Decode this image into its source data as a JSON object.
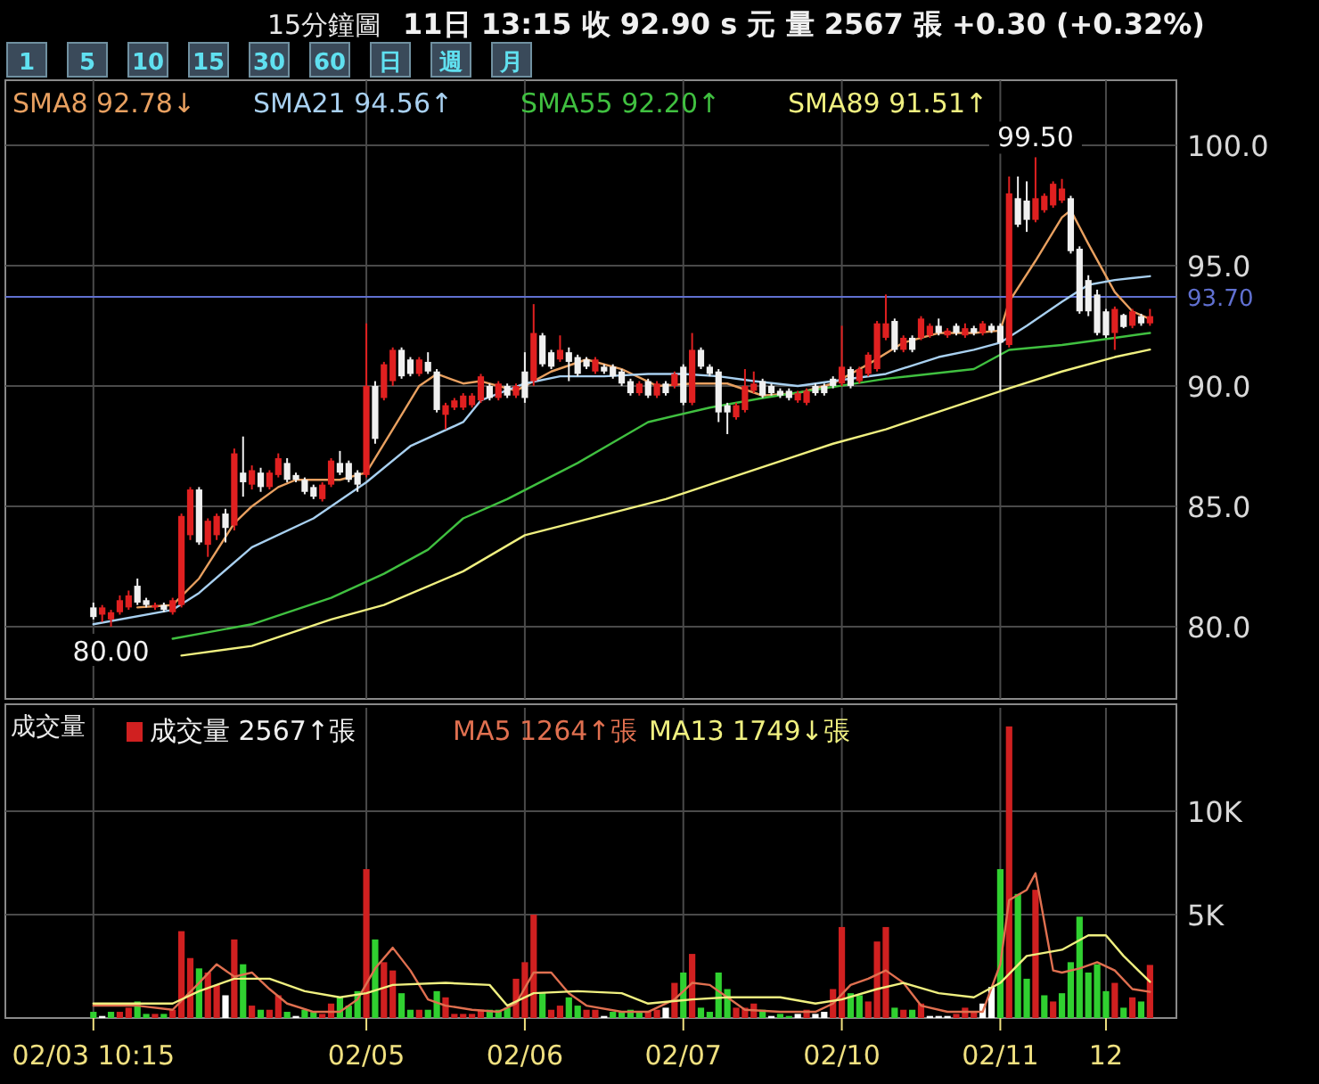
{
  "chart_data": [
    {
      "type": "candlestick",
      "title": "15分鐘圖",
      "subtitle": "11日 13:15 收 92.90 s 元 量 2567 張 +0.30 (+0.32%)",
      "annotations": [
        "1",
        "5",
        "10",
        "15",
        "30",
        "60",
        "日",
        "週",
        "月",
        {
          "text": "99.50",
          "y": 99.5
        },
        {
          "text": "80.00",
          "y": 80.0
        }
      ],
      "categories": [
        null,
        null,
        null,
        null,
        null,
        null,
        null,
        null,
        null,
        null,
        null,
        null,
        null,
        null,
        null,
        null,
        null,
        null,
        null,
        null,
        null,
        null,
        null,
        null,
        null,
        null,
        null,
        null,
        null,
        null,
        null,
        null,
        null,
        null,
        null,
        null,
        null,
        null,
        null,
        null,
        null,
        null,
        null,
        null,
        null,
        null,
        null,
        null,
        null,
        null,
        null,
        null,
        null,
        null,
        null,
        null,
        null,
        null,
        null,
        null,
        null,
        null,
        null,
        null,
        null,
        null,
        null,
        null,
        null,
        null,
        null,
        null,
        null,
        null,
        null,
        null,
        null,
        null,
        null,
        null,
        null,
        null,
        null,
        null,
        null,
        null,
        null,
        null,
        null,
        null,
        null,
        null,
        null,
        null,
        null,
        null,
        null,
        null,
        null,
        null,
        null,
        null,
        null,
        null,
        null,
        null,
        null,
        null,
        null,
        null,
        null,
        null,
        null,
        null,
        null,
        null,
        null,
        null,
        null,
        null,
        null
      ],
      "ylim": [
        77,
        102.7
      ],
      "yticks": [
        {
          "value": 80,
          "label": "80.0"
        },
        {
          "value": 85,
          "label": "85.0"
        },
        {
          "value": 90,
          "label": "90.0"
        },
        {
          "value": 95,
          "label": "95.0"
        },
        {
          "value": 100,
          "label": "100.0"
        }
      ],
      "tick_labels": "y",
      "grid": true,
      "legend": "top left",
      "ref_lines": [
        {
          "axis": "y",
          "value": 93.7,
          "label": "93.70",
          "color": "#6070d0"
        }
      ],
      "ohlc": [
        [
          80.8,
          81.0,
          80.3,
          80.4
        ],
        [
          80.5,
          80.9,
          80.2,
          80.8
        ],
        [
          80.3,
          80.7,
          80.0,
          80.6
        ],
        [
          80.6,
          81.3,
          80.5,
          81.1
        ],
        [
          80.8,
          81.5,
          80.7,
          81.3
        ],
        [
          81.7,
          82.0,
          80.9,
          81.0
        ],
        [
          81.1,
          81.2,
          80.8,
          80.9
        ],
        [
          80.8,
          81.0,
          80.7,
          80.9
        ],
        [
          80.9,
          81.0,
          80.6,
          80.7
        ],
        [
          80.6,
          81.2,
          80.5,
          81.1
        ],
        [
          80.9,
          84.7,
          80.8,
          84.6
        ],
        [
          83.8,
          85.8,
          83.6,
          85.7
        ],
        [
          85.7,
          85.8,
          83.4,
          83.5
        ],
        [
          83.4,
          84.5,
          82.9,
          84.4
        ],
        [
          83.8,
          84.7,
          83.6,
          84.6
        ],
        [
          84.7,
          84.9,
          83.5,
          84.1
        ],
        [
          84.2,
          87.4,
          84.0,
          87.2
        ],
        [
          86.4,
          87.9,
          85.4,
          86.0
        ],
        [
          85.9,
          86.7,
          85.7,
          86.5
        ],
        [
          86.4,
          86.6,
          85.6,
          85.8
        ],
        [
          85.8,
          86.5,
          85.7,
          86.4
        ],
        [
          86.3,
          87.2,
          86.2,
          87.0
        ],
        [
          86.8,
          87.0,
          86.0,
          86.1
        ],
        [
          86.3,
          86.4,
          86.0,
          86.1
        ],
        [
          86.1,
          86.2,
          85.5,
          85.6
        ],
        [
          85.8,
          85.9,
          85.3,
          85.4
        ],
        [
          85.3,
          86.0,
          85.2,
          85.9
        ],
        [
          85.9,
          87.0,
          85.8,
          86.9
        ],
        [
          86.8,
          87.3,
          86.3,
          86.4
        ],
        [
          86.8,
          86.9,
          86.0,
          86.1
        ],
        [
          86.4,
          86.5,
          85.6,
          85.9
        ],
        [
          86.3,
          92.6,
          86.2,
          90.0
        ],
        [
          90.0,
          90.2,
          87.6,
          87.8
        ],
        [
          89.5,
          91.0,
          89.4,
          90.9
        ],
        [
          90.2,
          91.6,
          90.0,
          91.5
        ],
        [
          91.5,
          91.6,
          90.3,
          90.4
        ],
        [
          91.1,
          91.2,
          90.4,
          90.5
        ],
        [
          90.5,
          91.2,
          90.4,
          91.1
        ],
        [
          91.0,
          91.4,
          90.5,
          90.6
        ],
        [
          90.6,
          90.7,
          88.9,
          89.0
        ],
        [
          88.8,
          89.3,
          88.2,
          89.2
        ],
        [
          89.1,
          89.5,
          89.0,
          89.4
        ],
        [
          89.1,
          89.7,
          89.0,
          89.6
        ],
        [
          89.2,
          89.7,
          89.1,
          89.6
        ],
        [
          89.4,
          90.5,
          89.3,
          90.4
        ],
        [
          90.0,
          90.1,
          89.4,
          89.5
        ],
        [
          89.5,
          90.2,
          89.4,
          90.1
        ],
        [
          90.0,
          90.1,
          89.5,
          89.6
        ],
        [
          89.6,
          90.1,
          89.5,
          90.0
        ],
        [
          90.6,
          91.4,
          89.3,
          89.5
        ],
        [
          90.2,
          93.4,
          90.0,
          92.2
        ],
        [
          92.1,
          92.2,
          90.8,
          90.9
        ],
        [
          91.4,
          91.5,
          90.7,
          90.8
        ],
        [
          91.1,
          92.1,
          91.0,
          91.5
        ],
        [
          91.4,
          91.6,
          90.2,
          91.0
        ],
        [
          91.2,
          91.3,
          90.4,
          90.5
        ],
        [
          91.1,
          91.2,
          90.7,
          90.8
        ],
        [
          90.6,
          91.2,
          90.5,
          91.1
        ],
        [
          90.8,
          90.9,
          90.5,
          90.6
        ],
        [
          90.8,
          90.9,
          90.3,
          90.4
        ],
        [
          90.6,
          90.7,
          90.0,
          90.1
        ],
        [
          90.2,
          90.3,
          89.6,
          89.7
        ],
        [
          89.7,
          90.2,
          89.6,
          90.1
        ],
        [
          90.2,
          90.3,
          89.5,
          89.6
        ],
        [
          89.6,
          90.2,
          89.5,
          90.1
        ],
        [
          90.1,
          90.2,
          89.6,
          89.7
        ],
        [
          90.0,
          90.6,
          89.9,
          90.5
        ],
        [
          90.8,
          90.9,
          89.2,
          89.3
        ],
        [
          89.3,
          92.2,
          89.2,
          91.5
        ],
        [
          91.5,
          91.6,
          90.7,
          90.8
        ],
        [
          90.8,
          90.9,
          90.4,
          90.5
        ],
        [
          90.6,
          90.7,
          88.5,
          88.9
        ],
        [
          89.2,
          89.3,
          88.0,
          88.9
        ],
        [
          88.7,
          89.3,
          88.6,
          89.2
        ],
        [
          89.0,
          90.7,
          88.9,
          90.0
        ],
        [
          89.8,
          90.6,
          89.7,
          90.1
        ],
        [
          90.2,
          90.3,
          89.5,
          89.6
        ],
        [
          90.0,
          90.1,
          89.6,
          89.7
        ],
        [
          89.8,
          89.9,
          89.5,
          89.6
        ],
        [
          89.8,
          89.9,
          89.4,
          89.5
        ],
        [
          89.4,
          89.8,
          89.3,
          89.7
        ],
        [
          89.3,
          89.9,
          89.2,
          89.8
        ],
        [
          90.0,
          90.1,
          89.6,
          89.7
        ],
        [
          90.0,
          90.1,
          89.6,
          89.7
        ],
        [
          90.3,
          90.4,
          89.9,
          90.0
        ],
        [
          90.1,
          92.5,
          90.0,
          90.8
        ],
        [
          90.7,
          90.8,
          89.9,
          90.0
        ],
        [
          90.2,
          90.8,
          90.1,
          90.7
        ],
        [
          90.5,
          91.4,
          90.4,
          91.3
        ],
        [
          90.7,
          92.7,
          90.6,
          92.6
        ],
        [
          92.0,
          93.8,
          91.9,
          92.6
        ],
        [
          92.7,
          92.8,
          91.4,
          91.5
        ],
        [
          91.5,
          92.1,
          91.4,
          92.0
        ],
        [
          92.0,
          92.1,
          91.4,
          91.5
        ],
        [
          92.0,
          92.9,
          91.9,
          92.8
        ],
        [
          92.1,
          92.6,
          92.0,
          92.5
        ],
        [
          92.5,
          92.8,
          92.1,
          92.2
        ],
        [
          92.1,
          92.4,
          92.0,
          92.3
        ],
        [
          92.5,
          92.6,
          92.1,
          92.2
        ],
        [
          92.1,
          92.6,
          92.0,
          92.4
        ],
        [
          92.4,
          92.5,
          92.1,
          92.2
        ],
        [
          92.2,
          92.7,
          92.1,
          92.6
        ],
        [
          92.5,
          92.6,
          92.2,
          92.3
        ],
        [
          92.5,
          92.6,
          89.8,
          91.8
        ],
        [
          91.7,
          98.7,
          91.6,
          98.0
        ],
        [
          97.8,
          98.7,
          96.6,
          96.7
        ],
        [
          97.7,
          98.5,
          96.4,
          96.9
        ],
        [
          96.9,
          99.5,
          96.8,
          97.8
        ],
        [
          97.3,
          98.0,
          97.2,
          97.9
        ],
        [
          97.5,
          98.5,
          97.4,
          98.4
        ],
        [
          97.7,
          98.6,
          97.6,
          98.2
        ],
        [
          97.8,
          97.9,
          95.5,
          95.6
        ],
        [
          95.7,
          95.8,
          93.0,
          93.1
        ],
        [
          94.4,
          94.6,
          92.9,
          93.1
        ],
        [
          93.8,
          94.0,
          92.1,
          92.2
        ],
        [
          93.1,
          93.2,
          92.0,
          92.1
        ],
        [
          92.2,
          93.3,
          91.5,
          93.2
        ],
        [
          92.95,
          93.0,
          92.4,
          92.45
        ],
        [
          92.5,
          93.2,
          92.4,
          93.1
        ],
        [
          92.9,
          93.0,
          92.5,
          92.6
        ],
        [
          92.6,
          93.2,
          92.5,
          92.9
        ]
      ],
      "colors": [
        "#f0f0f0",
        "#e02020",
        "#e02020",
        "#e02020",
        "#e02020",
        "#f0f0f0",
        "#f0f0f0",
        "#e02020",
        "#f0f0f0",
        "#e02020",
        "#e02020",
        "#e02020",
        "#f0f0f0",
        "#e02020",
        "#e02020",
        "#f0f0f0",
        "#e02020",
        "#f0f0f0",
        "#e02020",
        "#f0f0f0",
        "#e02020",
        "#e02020",
        "#f0f0f0",
        "#f0f0f0",
        "#f0f0f0",
        "#f0f0f0",
        "#e02020",
        "#e02020",
        "#f0f0f0",
        "#f0f0f0",
        "#f0f0f0",
        "#e02020",
        "#f0f0f0",
        "#e02020",
        "#e02020",
        "#f0f0f0",
        "#f0f0f0",
        "#e02020",
        "#f0f0f0",
        "#f0f0f0",
        "#e02020",
        "#e02020",
        "#e02020",
        "#e02020",
        "#e02020",
        "#f0f0f0",
        "#e02020",
        "#f0f0f0",
        "#e02020",
        "#f0f0f0",
        "#e02020",
        "#f0f0f0",
        "#f0f0f0",
        "#e02020",
        "#f0f0f0",
        "#f0f0f0",
        "#f0f0f0",
        "#e02020",
        "#f0f0f0",
        "#f0f0f0",
        "#f0f0f0",
        "#f0f0f0",
        "#e02020",
        "#f0f0f0",
        "#e02020",
        "#f0f0f0",
        "#e02020",
        "#f0f0f0",
        "#e02020",
        "#f0f0f0",
        "#f0f0f0",
        "#f0f0f0",
        "#f0f0f0",
        "#e02020",
        "#e02020",
        "#e02020",
        "#f0f0f0",
        "#f0f0f0",
        "#f0f0f0",
        "#f0f0f0",
        "#e02020",
        "#e02020",
        "#f0f0f0",
        "#f0f0f0",
        "#f0f0f0",
        "#e02020",
        "#f0f0f0",
        "#e02020",
        "#e02020",
        "#e02020",
        "#e02020",
        "#f0f0f0",
        "#e02020",
        "#f0f0f0",
        "#e02020",
        "#e02020",
        "#f0f0f0",
        "#e02020",
        "#f0f0f0",
        "#e02020",
        "#f0f0f0",
        "#e02020",
        "#f0f0f0",
        "#f0f0f0",
        "#e02020",
        "#f0f0f0",
        "#f0f0f0",
        "#e02020",
        "#e02020",
        "#e02020",
        "#e02020",
        "#f0f0f0",
        "#f0f0f0",
        "#f0f0f0",
        "#f0f0f0",
        "#f0f0f0",
        "#e02020",
        "#f0f0f0",
        "#e02020",
        "#f0f0f0",
        "#e02020"
      ],
      "series": [
        {
          "name": "SMA8 92.78↓",
          "type": "line",
          "color": "#e8a060",
          "values": [
            null,
            null,
            null,
            null,
            null,
            80.8,
            null,
            null,
            null,
            80.9,
            null,
            null,
            82.0,
            null,
            null,
            null,
            84.3,
            null,
            85.0,
            null,
            null,
            85.8,
            null,
            86.1,
            null,
            null,
            null,
            null,
            86.1,
            null,
            null,
            86.4,
            null,
            null,
            88.2,
            null,
            null,
            90.0,
            null,
            90.5,
            null,
            null,
            90.1,
            null,
            90.2,
            null,
            null,
            null,
            89.8,
            null,
            null,
            null,
            90.6,
            null,
            null,
            null,
            91.1,
            null,
            null,
            null,
            90.7,
            null,
            null,
            null,
            90.0,
            null,
            null,
            null,
            90.1,
            null,
            null,
            null,
            90.1,
            null,
            null,
            null,
            89.6,
            null,
            null,
            null,
            89.7,
            null,
            null,
            null,
            90.1,
            null,
            null,
            null,
            90.9,
            null,
            null,
            null,
            91.8,
            null,
            null,
            null,
            92.2,
            null,
            null,
            null,
            92.2,
            null,
            null,
            92.3,
            93.5,
            null,
            null,
            95.2,
            null,
            null,
            97.0,
            97.3,
            null,
            95.9,
            null,
            null,
            93.9,
            null,
            93.1,
            null,
            92.78
          ]
        },
        {
          "name": "SMA21 94.56↑",
          "type": "line",
          "color": "#a8d0f0",
          "values": [
            80.1,
            null,
            null,
            null,
            null,
            null,
            null,
            null,
            null,
            80.7,
            null,
            null,
            81.4,
            null,
            null,
            null,
            null,
            null,
            83.3,
            null,
            null,
            null,
            null,
            null,
            null,
            84.5,
            null,
            null,
            null,
            null,
            null,
            86.0,
            null,
            null,
            null,
            null,
            87.5,
            null,
            null,
            null,
            null,
            null,
            88.5,
            null,
            89.4,
            null,
            null,
            null,
            null,
            90.1,
            null,
            null,
            null,
            90.4,
            null,
            null,
            null,
            null,
            90.4,
            null,
            null,
            null,
            null,
            90.5,
            null,
            null,
            null,
            90.5,
            null,
            null,
            null,
            90.4,
            null,
            null,
            null,
            90.2,
            null,
            null,
            null,
            null,
            90.0,
            null,
            null,
            null,
            90.2,
            null,
            null,
            null,
            null,
            null,
            90.5,
            null,
            null,
            null,
            null,
            null,
            91.2,
            null,
            null,
            null,
            91.5,
            null,
            null,
            91.8,
            null,
            null,
            92.5,
            null,
            null,
            null,
            93.5,
            null,
            null,
            94.2,
            null,
            null,
            94.4,
            null,
            null,
            null,
            94.56
          ]
        },
        {
          "name": "SMA55 92.20↑",
          "type": "line",
          "color": "#40c040",
          "values": [
            null,
            null,
            null,
            null,
            null,
            null,
            null,
            null,
            null,
            79.5,
            null,
            null,
            null,
            null,
            null,
            null,
            null,
            null,
            80.1,
            null,
            null,
            null,
            null,
            null,
            null,
            null,
            null,
            81.2,
            null,
            null,
            null,
            null,
            null,
            82.2,
            null,
            null,
            null,
            null,
            83.2,
            null,
            null,
            null,
            84.5,
            null,
            null,
            null,
            null,
            85.3,
            null,
            null,
            null,
            null,
            null,
            null,
            null,
            86.8,
            null,
            null,
            null,
            null,
            null,
            null,
            null,
            88.5,
            null,
            null,
            null,
            null,
            null,
            null,
            89.1,
            null,
            null,
            null,
            null,
            null,
            89.5,
            null,
            null,
            null,
            null,
            null,
            null,
            89.9,
            null,
            null,
            null,
            null,
            null,
            null,
            90.3,
            null,
            null,
            null,
            null,
            null,
            null,
            null,
            null,
            null,
            90.7,
            null,
            null,
            null,
            91.5,
            null,
            null,
            null,
            null,
            null,
            91.7,
            null,
            null,
            null,
            null,
            null,
            92.0,
            null,
            null,
            null,
            92.2
          ]
        },
        {
          "name": "SMA89 91.51↑",
          "type": "line",
          "color": "#f0f080",
          "values": [
            null,
            null,
            null,
            null,
            null,
            null,
            null,
            null,
            null,
            null,
            78.8,
            null,
            null,
            null,
            null,
            null,
            null,
            null,
            79.2,
            null,
            null,
            null,
            null,
            null,
            null,
            null,
            null,
            80.3,
            null,
            null,
            null,
            null,
            null,
            80.9,
            null,
            null,
            null,
            null,
            null,
            null,
            null,
            null,
            82.3,
            null,
            null,
            null,
            null,
            null,
            null,
            83.8,
            null,
            null,
            null,
            null,
            null,
            null,
            null,
            null,
            null,
            null,
            null,
            null,
            null,
            null,
            null,
            85.3,
            null,
            null,
            null,
            null,
            null,
            null,
            null,
            null,
            null,
            null,
            null,
            null,
            null,
            null,
            null,
            null,
            null,
            null,
            87.6,
            null,
            null,
            null,
            null,
            null,
            88.2,
            null,
            null,
            null,
            null,
            null,
            null,
            null,
            null,
            null,
            null,
            null,
            null,
            null,
            89.9,
            null,
            null,
            null,
            null,
            null,
            90.6,
            null,
            null,
            null,
            null,
            null,
            91.2,
            null,
            null,
            null,
            91.51
          ]
        }
      ]
    },
    {
      "type": "bar",
      "ylabel": "成交量",
      "categories": [
        "02/03 10:15",
        null,
        null,
        null,
        null,
        null,
        null,
        null,
        null,
        null,
        null,
        null,
        null,
        null,
        null,
        null,
        null,
        null,
        null,
        null,
        null,
        null,
        null,
        null,
        null,
        null,
        null,
        null,
        null,
        null,
        null,
        "02/05",
        null,
        null,
        null,
        null,
        null,
        null,
        null,
        null,
        null,
        null,
        null,
        null,
        null,
        null,
        null,
        null,
        null,
        "02/06",
        null,
        null,
        null,
        null,
        null,
        null,
        null,
        null,
        null,
        null,
        null,
        null,
        null,
        null,
        null,
        null,
        null,
        "02/07",
        null,
        null,
        null,
        null,
        null,
        null,
        null,
        null,
        null,
        null,
        null,
        null,
        null,
        null,
        null,
        null,
        null,
        "02/10",
        null,
        null,
        null,
        null,
        null,
        null,
        null,
        null,
        null,
        null,
        null,
        null,
        null,
        null,
        null,
        null,
        null,
        "02/11",
        null,
        null,
        null,
        null,
        null,
        null,
        null,
        null,
        null,
        null,
        null,
        "12",
        null,
        null,
        null,
        null,
        null
      ],
      "ylim": [
        0,
        15000
      ],
      "yticks": [
        {
          "value": 5000,
          "label": "5K"
        },
        {
          "value": 10000,
          "label": "10K"
        }
      ],
      "grid": true,
      "legend": "top left",
      "series": [
        {
          "name": "成交量 2567↑張",
          "type": "bar",
          "values": [
            300,
            100,
            300,
            300,
            500,
            800,
            200,
            200,
            200,
            400,
            4200,
            2900,
            2400,
            2200,
            1600,
            1100,
            3800,
            2600,
            600,
            400,
            400,
            1100,
            300,
            100,
            400,
            300,
            200,
            700,
            1000,
            600,
            1300,
            7200,
            3800,
            2700,
            2300,
            1200,
            400,
            400,
            400,
            1300,
            1000,
            200,
            200,
            200,
            400,
            400,
            400,
            500,
            1900,
            2700,
            5000,
            1200,
            400,
            600,
            1000,
            600,
            400,
            400,
            100,
            300,
            300,
            400,
            300,
            300,
            400,
            500,
            1700,
            2200,
            3100,
            500,
            300,
            2200,
            1400,
            500,
            500,
            700,
            400,
            100,
            200,
            100,
            200,
            400,
            200,
            300,
            1400,
            4400,
            1200,
            1100,
            800,
            3700,
            4400,
            500,
            400,
            400,
            700,
            100,
            100,
            100,
            200,
            500,
            300,
            700,
            1500,
            7200,
            14100,
            6000,
            1900,
            6200,
            1100,
            800,
            1200,
            2700,
            4900,
            2200,
            2600,
            1300,
            1700,
            500,
            1000,
            800,
            2567
          ],
          "colors": [
            "#30d030",
            "#ffffff",
            "#30d030",
            "#d02020",
            "#d02020",
            "#30d030",
            "#30d030",
            "#d02020",
            "#30d030",
            "#d02020",
            "#d02020",
            "#d02020",
            "#30d030",
            "#d02020",
            "#d02020",
            "#ffffff",
            "#d02020",
            "#30d030",
            "#d02020",
            "#30d030",
            "#d02020",
            "#d02020",
            "#30d030",
            "#ffffff",
            "#30d030",
            "#30d030",
            "#d02020",
            "#d02020",
            "#30d030",
            "#30d030",
            "#30d030",
            "#d02020",
            "#30d030",
            "#d02020",
            "#d02020",
            "#30d030",
            "#30d030",
            "#d02020",
            "#30d030",
            "#30d030",
            "#d02020",
            "#d02020",
            "#d02020",
            "#d02020",
            "#d02020",
            "#30d030",
            "#30d030",
            "#30d030",
            "#d02020",
            "#d02020",
            "#d02020",
            "#30d030",
            "#d02020",
            "#d02020",
            "#30d030",
            "#30d030",
            "#d02020",
            "#d02020",
            "#ffffff",
            "#30d030",
            "#30d030",
            "#30d030",
            "#30d030",
            "#d02020",
            "#d02020",
            "#ffffff",
            "#d02020",
            "#30d030",
            "#d02020",
            "#30d030",
            "#30d030",
            "#30d030",
            "#30d030",
            "#d02020",
            "#d02020",
            "#d02020",
            "#30d030",
            "#ffffff",
            "#30d030",
            "#30d030",
            "#ffffff",
            "#d02020",
            "#ffffff",
            "#ffffff",
            "#d02020",
            "#d02020",
            "#30d030",
            "#30d030",
            "#d02020",
            "#d02020",
            "#d02020",
            "#30d030",
            "#d02020",
            "#30d030",
            "#d02020",
            "#ffffff",
            "#ffffff",
            "#ffffff",
            "#d02020",
            "#d02020",
            "#d02020",
            "#ffffff",
            "#ffffff",
            "#30d030",
            "#d02020",
            "#30d030",
            "#30d030",
            "#d02020",
            "#30d030",
            "#d02020",
            "#30d030",
            "#30d030",
            "#30d030",
            "#30d030",
            "#30d030",
            "#30d030",
            "#d02020",
            "#30d030",
            "#d02020",
            "#30d030",
            "#d02020"
          ]
        },
        {
          "name": "MA5 1264↑張",
          "type": "line",
          "color": "#e07050",
          "values": [
            600,
            null,
            null,
            null,
            null,
            600,
            null,
            null,
            null,
            400,
            null,
            null,
            1700,
            null,
            2600,
            null,
            2000,
            null,
            2200,
            null,
            1400,
            null,
            700,
            null,
            null,
            300,
            null,
            null,
            300,
            null,
            900,
            null,
            2400,
            null,
            3400,
            null,
            2300,
            null,
            900,
            null,
            600,
            null,
            null,
            400,
            null,
            null,
            300,
            null,
            700,
            null,
            2200,
            null,
            2200,
            null,
            1200,
            null,
            600,
            null,
            null,
            null,
            300,
            null,
            null,
            300,
            null,
            null,
            900,
            null,
            1700,
            null,
            1600,
            null,
            1000,
            null,
            400,
            null,
            null,
            null,
            300,
            null,
            null,
            null,
            300,
            null,
            700,
            null,
            1600,
            null,
            1900,
            null,
            2300,
            null,
            1700,
            null,
            600,
            null,
            null,
            300,
            null,
            null,
            null,
            300,
            null,
            2600,
            5700,
            null,
            6200,
            7000,
            null,
            2300,
            2200,
            null,
            2400,
            null,
            2700,
            null,
            2300,
            null,
            1400,
            null,
            1264
          ]
        },
        {
          "name": "MA13 1749↓張",
          "type": "line",
          "color": "#f0f080",
          "values": [
            700,
            null,
            null,
            null,
            null,
            null,
            null,
            null,
            null,
            700,
            null,
            null,
            1300,
            null,
            null,
            null,
            1900,
            null,
            null,
            null,
            1900,
            null,
            null,
            null,
            1300,
            null,
            null,
            null,
            1000,
            null,
            null,
            1200,
            null,
            null,
            1600,
            null,
            null,
            null,
            null,
            null,
            1700,
            null,
            null,
            null,
            null,
            1600,
            null,
            600,
            null,
            null,
            1200,
            null,
            null,
            null,
            null,
            1300,
            null,
            null,
            null,
            null,
            1200,
            null,
            null,
            700,
            null,
            null,
            null,
            null,
            900,
            null,
            null,
            null,
            1000,
            null,
            null,
            null,
            null,
            null,
            1000,
            null,
            null,
            null,
            700,
            null,
            null,
            900,
            null,
            null,
            null,
            1400,
            null,
            null,
            1700,
            null,
            null,
            null,
            1200,
            null,
            null,
            null,
            1000,
            null,
            null,
            1700,
            null,
            null,
            3000,
            null,
            null,
            null,
            3300,
            null,
            null,
            4000,
            null,
            4000,
            null,
            3000,
            null,
            null,
            1749
          ]
        }
      ]
    }
  ]
}
